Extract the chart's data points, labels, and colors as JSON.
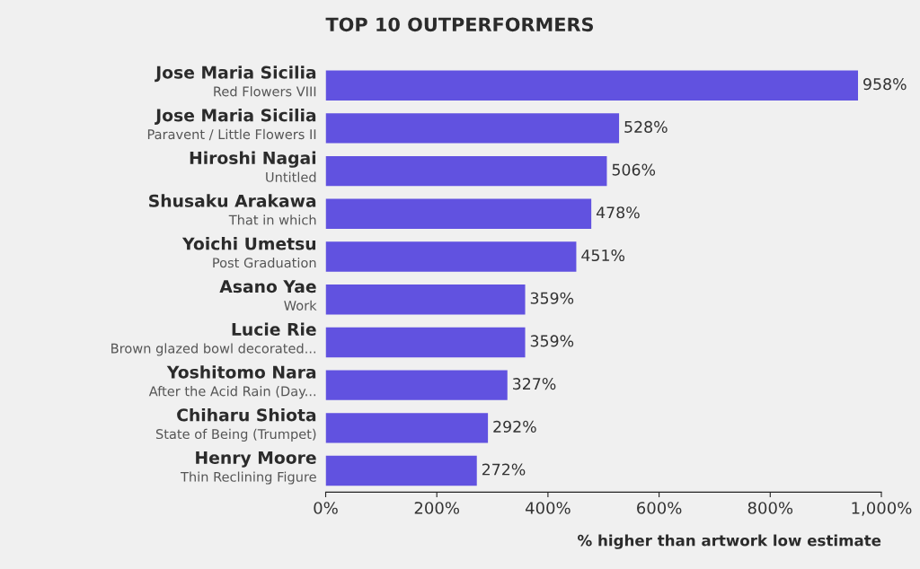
{
  "chart_data": {
    "type": "bar",
    "orientation": "horizontal",
    "title": "TOP 10 OUTPERFORMERS",
    "xlabel": "% higher than artwork low estimate",
    "categories": [
      "Jose Maria Sicilia\nRed Flowers VIII",
      "Jose Maria Sicilia\nParavent / Little Flowers II",
      "Hiroshi Nagai\nUntitled",
      "Shusaku Arakawa\nThat in which",
      "Yoichi Umetsu\nPost Graduation",
      "Asano Yae\nWork",
      "Lucie Rie\nBrown glazed bowl decorated...",
      "Yoshitomo Nara\nAfter the Acid Rain (Day...",
      "Chiharu Shiota\nState of Being (Trumpet)",
      "Henry Moore\nThin Reclining Figure"
    ],
    "values": [
      958,
      528,
      506,
      478,
      451,
      359,
      359,
      327,
      292,
      272
    ],
    "value_labels": [
      "958%",
      "528%",
      "506%",
      "478%",
      "451%",
      "359%",
      "359%",
      "327%",
      "292%",
      "272%"
    ],
    "color": "#6152e0",
    "xlim": [
      0,
      1000
    ],
    "xticks": [
      {
        "value": 0,
        "label": "0%"
      },
      {
        "value": 200,
        "label": "200%"
      },
      {
        "value": 400,
        "label": "400%"
      },
      {
        "value": 600,
        "label": "600%"
      },
      {
        "value": 800,
        "label": "800%"
      },
      {
        "value": 1000,
        "label": "1,000%"
      }
    ],
    "grid": false,
    "legend": false
  }
}
